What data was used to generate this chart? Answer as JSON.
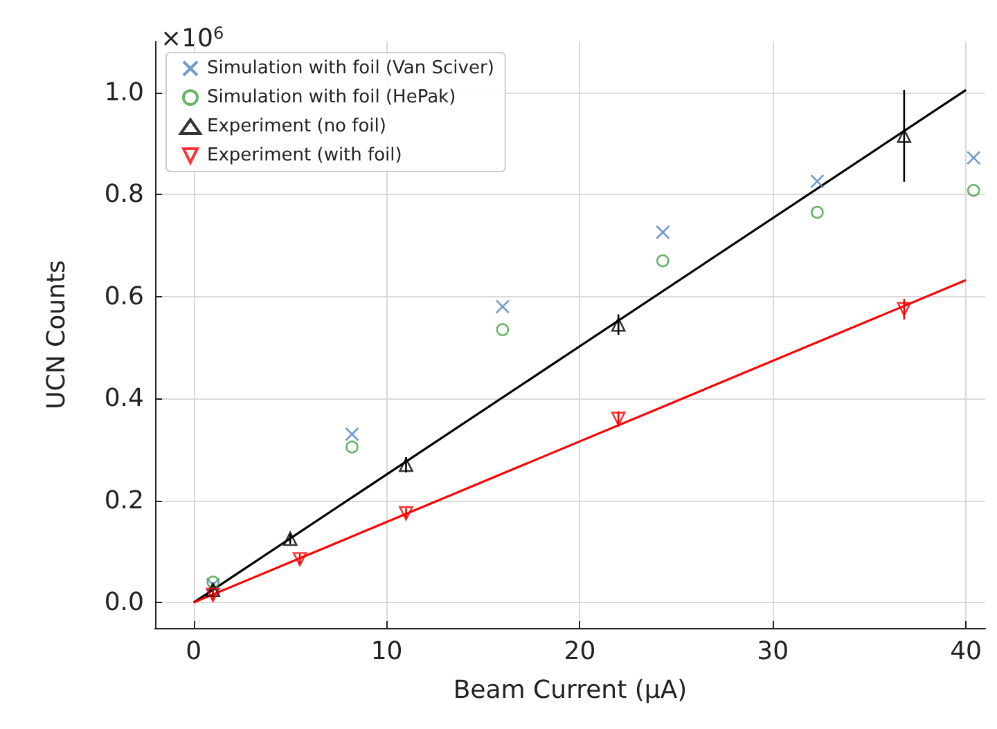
{
  "chart_data": {
    "type": "scatter",
    "xlabel": "Beam Current (μA)",
    "ylabel": "UCN Counts",
    "annotations": [
      "×10$^{6}$"
    ],
    "xlim": [
      -2,
      41
    ],
    "xticks": [
      0,
      10,
      20,
      30,
      40
    ],
    "ylim": [
      -0.05,
      1.1
    ],
    "yticks": [
      {
        "value": 0,
        "label": "0.0"
      },
      {
        "value": 0.2,
        "label": "0.2"
      },
      {
        "value": 0.4,
        "label": "0.4"
      },
      {
        "value": 0.6,
        "label": "0.6"
      },
      {
        "value": 0.8,
        "label": "0.8"
      },
      {
        "value": 1,
        "label": "1.0"
      }
    ],
    "grid": true,
    "legend": "top left",
    "series": [
      {
        "name": "Simulation with foil (Van Sciver)",
        "marker": "cross",
        "color": "#4c80c0",
        "x": [
          1,
          8.2,
          16,
          24.3,
          32.3,
          40.4
        ],
        "values": [
          0.035,
          0.33,
          0.58,
          0.726,
          0.826,
          0.872
        ]
      },
      {
        "name": "Simulation with foil (HePak)",
        "marker": "circle",
        "color": "#40a040",
        "x": [
          1,
          8.2,
          16,
          24.3,
          32.3,
          40.4
        ],
        "values": [
          0.04,
          0.305,
          0.535,
          0.67,
          0.765,
          0.808
        ]
      },
      {
        "name": "Experiment (no foil)",
        "marker": "triangle",
        "color": "#000000",
        "x": [
          1,
          5,
          11,
          22,
          36.8
        ],
        "values": [
          0.025,
          0.125,
          0.27,
          0.545,
          0.915
        ],
        "errors": [
          0.01,
          0.01,
          0.015,
          0.02,
          0.09
        ]
      },
      {
        "name": "Experiment (with foil)",
        "marker": "triangle-down",
        "color": "#ff0000",
        "x": [
          1,
          5.5,
          11,
          22,
          36.8
        ],
        "values": [
          0.015,
          0.085,
          0.175,
          0.36,
          0.575
        ],
        "errors": [
          0.01,
          0.01,
          0.01,
          0.015,
          0.02
        ]
      },
      {
        "type": "line",
        "marker": "none",
        "color": "#000000",
        "x": [
          0,
          40
        ],
        "values": [
          0,
          1.005
        ]
      },
      {
        "type": "line",
        "marker": "none",
        "color": "#ff0000",
        "x": [
          0,
          40
        ],
        "values": [
          0,
          0.632
        ]
      }
    ]
  }
}
